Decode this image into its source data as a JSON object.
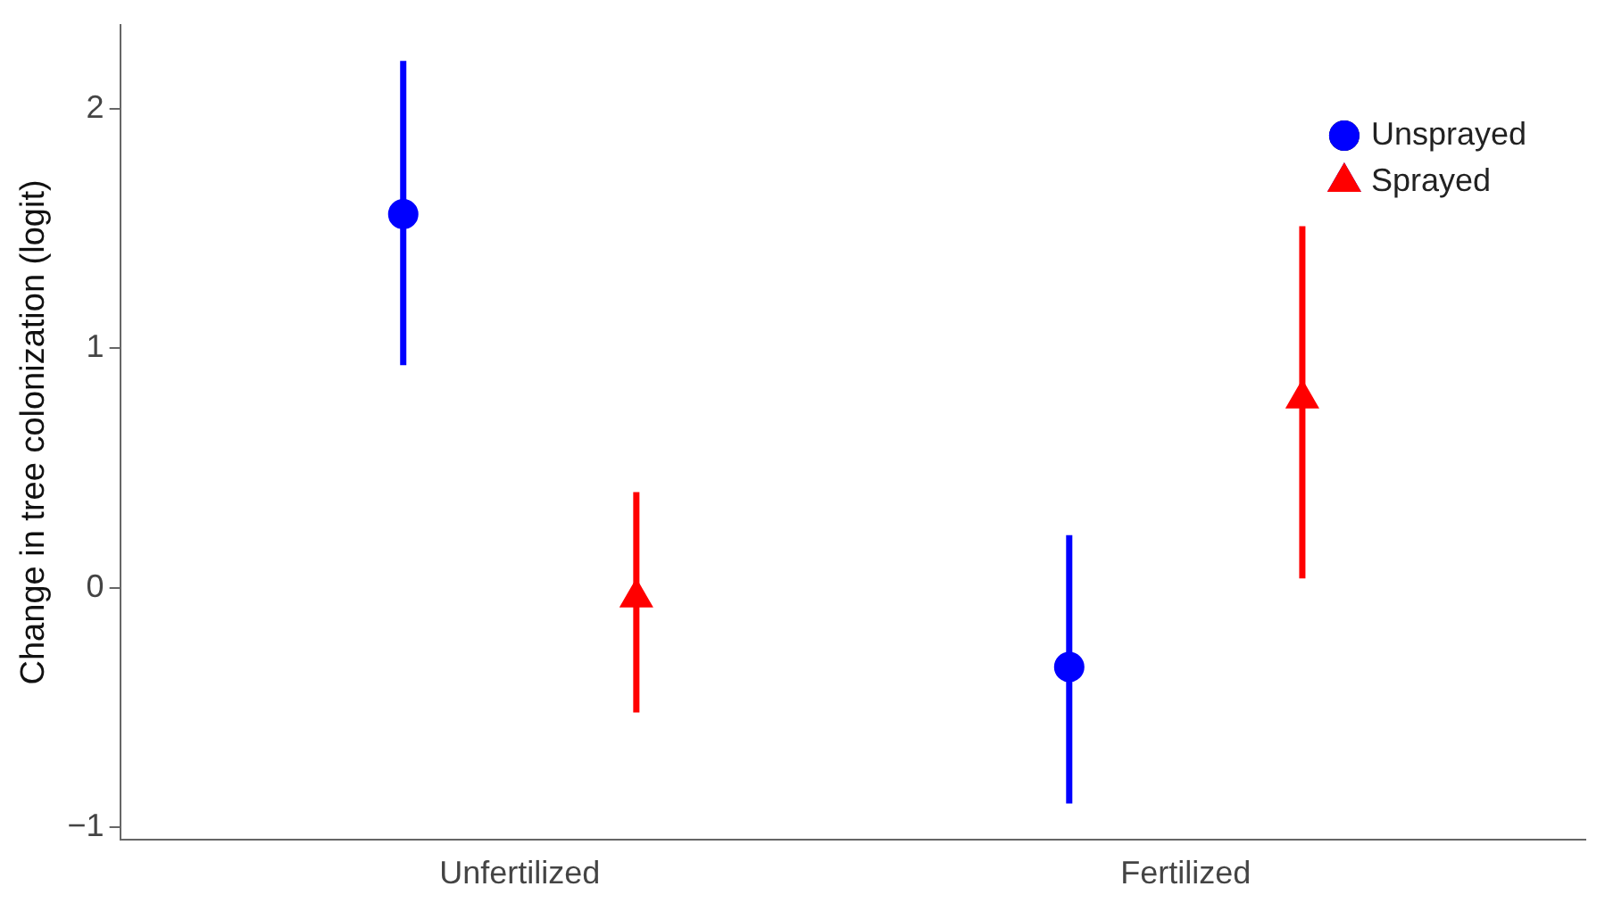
{
  "chart_data": {
    "type": "scatter",
    "ylabel": "Change in tree colonization (logit)",
    "categories": [
      "Unfertilized",
      "Fertilized"
    ],
    "series": [
      {
        "name": "Unsprayed",
        "color": "#0000ff",
        "marker": "circle",
        "values": [
          1.56,
          -0.33
        ],
        "errors": [
          [
            0.93,
            2.2
          ],
          [
            -0.9,
            0.22
          ]
        ]
      },
      {
        "name": "Sprayed",
        "color": "#ff0000",
        "marker": "triangle",
        "values": [
          -0.04,
          0.79
        ],
        "errors": [
          [
            -0.52,
            0.4
          ],
          [
            0.04,
            1.51
          ]
        ]
      }
    ],
    "ylim": [
      -1.05,
      2.35
    ],
    "yticks": [
      {
        "value": -1,
        "label": "−1"
      },
      0,
      1,
      2
    ],
    "grid": false,
    "legend": "top right"
  }
}
